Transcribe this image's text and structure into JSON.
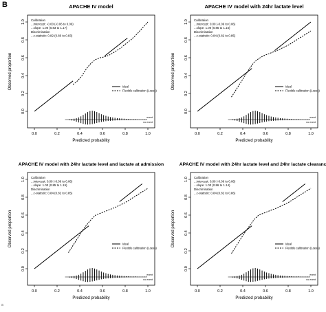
{
  "panel_label": "B",
  "corner_mark": "a",
  "chart_data": [
    {
      "type": "line",
      "title": "APACHE IV model",
      "xlabel": "Predicted probability",
      "ylabel": "Observed proportion",
      "xlim": [
        0,
        1
      ],
      "ylim": [
        0,
        1
      ],
      "xticks": [
        "0.0",
        "0.2",
        "0.4",
        "0.6",
        "0.8",
        "1.0"
      ],
      "yticks": [
        "0.0",
        "0.2",
        "0.4",
        "0.6",
        "0.8",
        "1.0"
      ],
      "stats": [
        "Calibration",
        "...intercept: -0.00 (-0.06 to 0.06)",
        "...slope: 1.00 (0.83 to 1.17)",
        "Discrimination",
        "...c-statistic: 0.82 (0.80 to 0.83)"
      ],
      "legend": {
        "position": "right",
        "entries": [
          "Ideal",
          "Flexible calibration (Loess)"
        ]
      },
      "hist_labels": [
        "event",
        "no event"
      ],
      "series": [
        {
          "name": "Ideal",
          "style": "solid",
          "segments": [
            {
              "x": [
                0.0,
                0.34
              ],
              "y": [
                0.0,
                0.34
              ]
            },
            {
              "x": [
                0.62,
                0.82
              ],
              "y": [
                0.62,
                0.82
              ]
            }
          ]
        },
        {
          "name": "Flexible calibration (Loess)",
          "style": "dashed",
          "x": [
            0.34,
            0.38,
            0.42,
            0.46,
            0.5,
            0.54,
            0.58,
            0.62,
            0.66,
            0.7,
            0.75,
            0.8,
            0.85,
            0.9,
            0.95,
            1.0
          ],
          "y": [
            0.3,
            0.34,
            0.4,
            0.48,
            0.54,
            0.58,
            0.6,
            0.61,
            0.63,
            0.66,
            0.7,
            0.75,
            0.8,
            0.86,
            0.93,
            1.0
          ]
        }
      ],
      "histogram": {
        "x": [
          0.31,
          0.33,
          0.35,
          0.37,
          0.39,
          0.41,
          0.43,
          0.45,
          0.47,
          0.49,
          0.51,
          0.53,
          0.55,
          0.57,
          0.59,
          0.61,
          0.63,
          0.65,
          0.67,
          0.69,
          0.71,
          0.73,
          0.75,
          0.77,
          0.79,
          0.81,
          0.83,
          0.85,
          0.87,
          0.89,
          0.91,
          0.93,
          0.95,
          0.97,
          0.99
        ],
        "event": [
          0.02,
          0.03,
          0.05,
          0.08,
          0.12,
          0.18,
          0.26,
          0.34,
          0.42,
          0.48,
          0.5,
          0.47,
          0.42,
          0.36,
          0.3,
          0.25,
          0.21,
          0.17,
          0.14,
          0.12,
          0.1,
          0.08,
          0.07,
          0.06,
          0.05,
          0.04,
          0.04,
          0.03,
          0.03,
          0.03,
          0.02,
          0.02,
          0.02,
          0.02,
          0.02
        ],
        "no_event": [
          0.03,
          0.05,
          0.08,
          0.12,
          0.16,
          0.2,
          0.24,
          0.27,
          0.28,
          0.27,
          0.25,
          0.22,
          0.19,
          0.16,
          0.13,
          0.11,
          0.09,
          0.08,
          0.07,
          0.06,
          0.05,
          0.04,
          0.04,
          0.03,
          0.03,
          0.02,
          0.02,
          0.02,
          0.02,
          0.01,
          0.01,
          0.01,
          0.01,
          0.01,
          0.01
        ]
      }
    },
    {
      "type": "line",
      "title": "APACHE IV model with 24hr lactate level",
      "xlabel": "Predicted probability",
      "ylabel": "Observed proportion",
      "xlim": [
        0,
        1
      ],
      "ylim": [
        0,
        1
      ],
      "xticks": [
        "0.0",
        "0.2",
        "0.4",
        "0.6",
        "0.8",
        "1.0"
      ],
      "yticks": [
        "0.0",
        "0.2",
        "0.4",
        "0.6",
        "0.8",
        "1.0"
      ],
      "stats": [
        "Calibration",
        "...intercept: 0.00 (-0.06 to 0.06)",
        "...slope: 1.00 (0.85 to 1.15)",
        "Discrimination",
        "...c-statistic: 0.84 (0.82 to 0.85)"
      ],
      "legend": {
        "position": "right",
        "entries": [
          "Ideal",
          "Flexible calibration (Loess)"
        ]
      },
      "hist_labels": [
        "event",
        "no event"
      ],
      "series": [
        {
          "name": "Ideal",
          "style": "solid",
          "segments": [
            {
              "x": [
                0.0,
                0.48
              ],
              "y": [
                0.0,
                0.48
              ]
            },
            {
              "x": [
                0.68,
                1.0
              ],
              "y": [
                0.68,
                1.0
              ]
            }
          ]
        },
        {
          "name": "Flexible calibration (Loess)",
          "style": "dashed",
          "x": [
            0.3,
            0.34,
            0.38,
            0.42,
            0.46,
            0.5,
            0.54,
            0.58,
            0.62,
            0.66,
            0.7,
            0.75,
            0.8,
            0.85,
            0.9,
            0.95,
            1.0
          ],
          "y": [
            0.16,
            0.24,
            0.32,
            0.4,
            0.48,
            0.55,
            0.59,
            0.62,
            0.64,
            0.66,
            0.68,
            0.71,
            0.74,
            0.78,
            0.82,
            0.86,
            0.9
          ]
        }
      ],
      "histogram": {
        "x": [
          0.31,
          0.33,
          0.35,
          0.37,
          0.39,
          0.41,
          0.43,
          0.45,
          0.47,
          0.49,
          0.51,
          0.53,
          0.55,
          0.57,
          0.59,
          0.61,
          0.63,
          0.65,
          0.67,
          0.69,
          0.71,
          0.73,
          0.75,
          0.77,
          0.79,
          0.81,
          0.83,
          0.85,
          0.87,
          0.89,
          0.91,
          0.93,
          0.95,
          0.97,
          0.99
        ],
        "event": [
          0.02,
          0.03,
          0.05,
          0.08,
          0.12,
          0.18,
          0.26,
          0.34,
          0.42,
          0.48,
          0.5,
          0.47,
          0.42,
          0.36,
          0.3,
          0.25,
          0.21,
          0.17,
          0.14,
          0.12,
          0.1,
          0.08,
          0.07,
          0.06,
          0.05,
          0.04,
          0.04,
          0.03,
          0.03,
          0.03,
          0.02,
          0.02,
          0.02,
          0.02,
          0.02
        ],
        "no_event": [
          0.03,
          0.05,
          0.08,
          0.12,
          0.16,
          0.2,
          0.24,
          0.27,
          0.28,
          0.27,
          0.25,
          0.22,
          0.19,
          0.16,
          0.13,
          0.11,
          0.09,
          0.08,
          0.07,
          0.06,
          0.05,
          0.04,
          0.04,
          0.03,
          0.03,
          0.02,
          0.02,
          0.02,
          0.02,
          0.01,
          0.01,
          0.01,
          0.01,
          0.01,
          0.01
        ]
      }
    },
    {
      "type": "line",
      "title": "APACHE IV model with 24hr lactate level and lactate at admission",
      "xlabel": "Predicted probability",
      "ylabel": "Observed proportion",
      "xlim": [
        0,
        1
      ],
      "ylim": [
        0,
        1
      ],
      "xticks": [
        "0.0",
        "0.2",
        "0.4",
        "0.6",
        "0.8",
        "1.0"
      ],
      "yticks": [
        "0.0",
        "0.2",
        "0.4",
        "0.6",
        "0.8",
        "1.0"
      ],
      "stats": [
        "Calibration",
        "...intercept: 0.00 (-0.06 to 0.06)",
        "...slope: 1.00 (0.85 to 1.15)",
        "Discrimination",
        "...c-statistic: 0.84 (0.82 to 0.85)"
      ],
      "legend": {
        "position": "right",
        "entries": [
          "Ideal",
          "Flexible calibration (Loess)"
        ]
      },
      "hist_labels": [
        "event",
        "no event"
      ],
      "series": [
        {
          "name": "Ideal",
          "style": "solid",
          "segments": [
            {
              "x": [
                0.0,
                0.48
              ],
              "y": [
                0.0,
                0.48
              ]
            },
            {
              "x": [
                0.75,
                0.95
              ],
              "y": [
                0.75,
                0.95
              ]
            }
          ]
        },
        {
          "name": "Flexible calibration (Loess)",
          "style": "dashed",
          "x": [
            0.3,
            0.34,
            0.38,
            0.42,
            0.46,
            0.5,
            0.54,
            0.58,
            0.62,
            0.66,
            0.7,
            0.75,
            0.8,
            0.85,
            0.9,
            0.95,
            1.0
          ],
          "y": [
            0.18,
            0.26,
            0.34,
            0.42,
            0.49,
            0.55,
            0.6,
            0.62,
            0.64,
            0.66,
            0.68,
            0.71,
            0.74,
            0.78,
            0.82,
            0.86,
            0.9
          ]
        }
      ],
      "histogram": {
        "x": [
          0.31,
          0.33,
          0.35,
          0.37,
          0.39,
          0.41,
          0.43,
          0.45,
          0.47,
          0.49,
          0.51,
          0.53,
          0.55,
          0.57,
          0.59,
          0.61,
          0.63,
          0.65,
          0.67,
          0.69,
          0.71,
          0.73,
          0.75,
          0.77,
          0.79,
          0.81,
          0.83,
          0.85,
          0.87,
          0.89,
          0.91,
          0.93,
          0.95,
          0.97,
          0.99
        ],
        "event": [
          0.02,
          0.03,
          0.05,
          0.08,
          0.12,
          0.18,
          0.26,
          0.34,
          0.42,
          0.48,
          0.5,
          0.47,
          0.42,
          0.36,
          0.3,
          0.25,
          0.21,
          0.17,
          0.14,
          0.12,
          0.1,
          0.08,
          0.07,
          0.06,
          0.05,
          0.04,
          0.04,
          0.03,
          0.03,
          0.03,
          0.02,
          0.02,
          0.02,
          0.02,
          0.02
        ],
        "no_event": [
          0.03,
          0.05,
          0.08,
          0.12,
          0.16,
          0.2,
          0.24,
          0.27,
          0.28,
          0.27,
          0.25,
          0.22,
          0.19,
          0.16,
          0.13,
          0.11,
          0.09,
          0.08,
          0.07,
          0.06,
          0.05,
          0.04,
          0.04,
          0.03,
          0.03,
          0.02,
          0.02,
          0.02,
          0.02,
          0.01,
          0.01,
          0.01,
          0.01,
          0.01,
          0.01
        ]
      }
    },
    {
      "type": "line",
      "title": "APACHE IV model with 24hr lactate level and 24hr lactate clearance",
      "xlabel": "Predicted probability",
      "ylabel": "Observed proportion",
      "xlim": [
        0,
        1
      ],
      "ylim": [
        0,
        1
      ],
      "xticks": [
        "0.0",
        "0.2",
        "0.4",
        "0.6",
        "0.8",
        "1.0"
      ],
      "yticks": [
        "0.0",
        "0.2",
        "0.4",
        "0.6",
        "0.8",
        "1.0"
      ],
      "stats": [
        "Calibration",
        "...intercept: 0.00 (-0.06 to 0.06)",
        "...slope: 1.00 (0.86 to 1.14)",
        "Discrimination",
        "...c-statistic: 0.84 (0.82 to 0.86)"
      ],
      "legend": {
        "position": "right",
        "entries": [
          "Ideal",
          "Flexible calibration (Loess)"
        ]
      },
      "hist_labels": [
        "event",
        "no event"
      ],
      "series": [
        {
          "name": "Ideal",
          "style": "solid",
          "segments": [
            {
              "x": [
                0.0,
                0.48
              ],
              "y": [
                0.0,
                0.48
              ]
            },
            {
              "x": [
                0.75,
                0.95
              ],
              "y": [
                0.75,
                0.95
              ]
            }
          ]
        },
        {
          "name": "Flexible calibration (Loess)",
          "style": "dashed",
          "x": [
            0.3,
            0.34,
            0.38,
            0.42,
            0.46,
            0.5,
            0.54,
            0.58,
            0.62,
            0.66,
            0.7,
            0.75,
            0.8,
            0.85,
            0.9,
            0.95,
            1.0
          ],
          "y": [
            0.17,
            0.25,
            0.33,
            0.41,
            0.48,
            0.55,
            0.6,
            0.62,
            0.64,
            0.66,
            0.68,
            0.71,
            0.74,
            0.78,
            0.82,
            0.86,
            0.9
          ]
        }
      ],
      "histogram": {
        "x": [
          0.31,
          0.33,
          0.35,
          0.37,
          0.39,
          0.41,
          0.43,
          0.45,
          0.47,
          0.49,
          0.51,
          0.53,
          0.55,
          0.57,
          0.59,
          0.61,
          0.63,
          0.65,
          0.67,
          0.69,
          0.71,
          0.73,
          0.75,
          0.77,
          0.79,
          0.81,
          0.83,
          0.85,
          0.87,
          0.89,
          0.91,
          0.93,
          0.95,
          0.97,
          0.99
        ],
        "event": [
          0.02,
          0.03,
          0.05,
          0.08,
          0.12,
          0.18,
          0.26,
          0.34,
          0.42,
          0.48,
          0.5,
          0.47,
          0.42,
          0.36,
          0.3,
          0.25,
          0.21,
          0.17,
          0.14,
          0.12,
          0.1,
          0.08,
          0.07,
          0.06,
          0.05,
          0.04,
          0.04,
          0.03,
          0.03,
          0.03,
          0.02,
          0.02,
          0.02,
          0.02,
          0.02
        ],
        "no_event": [
          0.03,
          0.05,
          0.08,
          0.12,
          0.16,
          0.2,
          0.24,
          0.27,
          0.28,
          0.27,
          0.25,
          0.22,
          0.19,
          0.16,
          0.13,
          0.11,
          0.09,
          0.08,
          0.07,
          0.06,
          0.05,
          0.04,
          0.04,
          0.03,
          0.03,
          0.02,
          0.02,
          0.02,
          0.02,
          0.01,
          0.01,
          0.01,
          0.01,
          0.01,
          0.01
        ]
      }
    }
  ]
}
